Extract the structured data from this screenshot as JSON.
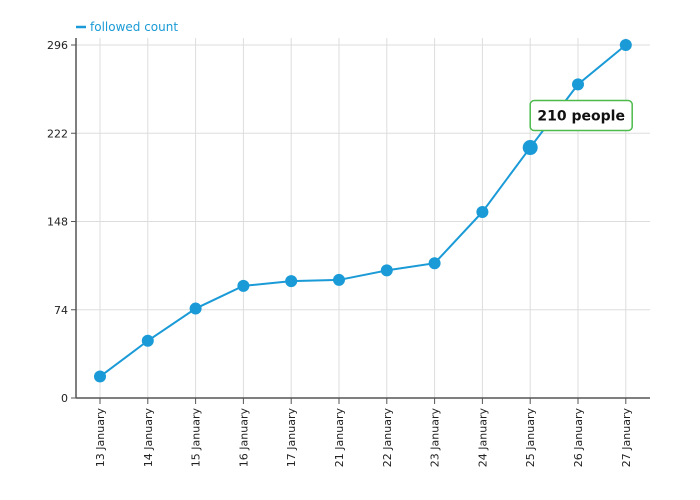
{
  "chart_data": {
    "type": "line",
    "categories": [
      "13 January",
      "14 January",
      "15 January",
      "16 January",
      "17 January",
      "21 January",
      "22 January",
      "23 January",
      "24 January",
      "25 January",
      "26 January",
      "27 January"
    ],
    "series": [
      {
        "name": "followed count",
        "values": [
          18,
          48,
          75,
          94,
          98,
          99,
          107,
          113,
          156,
          210,
          263,
          296
        ]
      }
    ],
    "yticks": [
      0,
      74,
      148,
      222,
      296
    ],
    "ylim": [
      0,
      296
    ],
    "grid": true,
    "legend_position": "top-left",
    "tooltip": {
      "index": 9,
      "text": "210 people"
    },
    "colors": {
      "series": "#1a9ad6",
      "grid": "#dddddd",
      "axis": "#555555",
      "tooltip_border": "#4cbb4c"
    }
  }
}
